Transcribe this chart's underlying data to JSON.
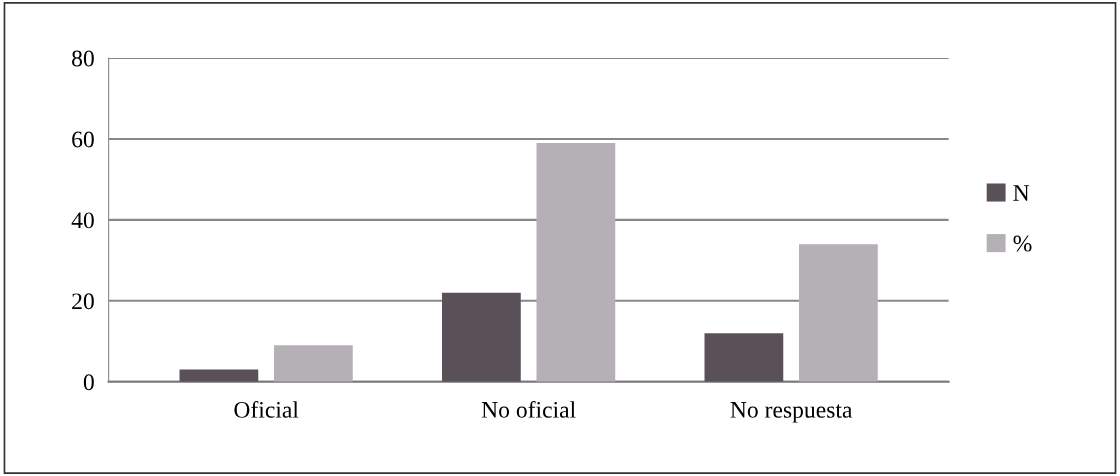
{
  "chart_data": {
    "type": "bar",
    "categories": [
      "Oficial",
      "No oficial",
      "No respuesta"
    ],
    "series": [
      {
        "name": "N",
        "color": "#5a5158",
        "values": [
          3,
          22,
          12
        ]
      },
      {
        "name": "%",
        "color": "#b5b0b5",
        "values": [
          9,
          59,
          34
        ]
      }
    ],
    "ylim": [
      0,
      80
    ],
    "yticks": [
      0,
      20,
      40,
      60,
      80
    ],
    "grid": "y",
    "legend": "right"
  }
}
